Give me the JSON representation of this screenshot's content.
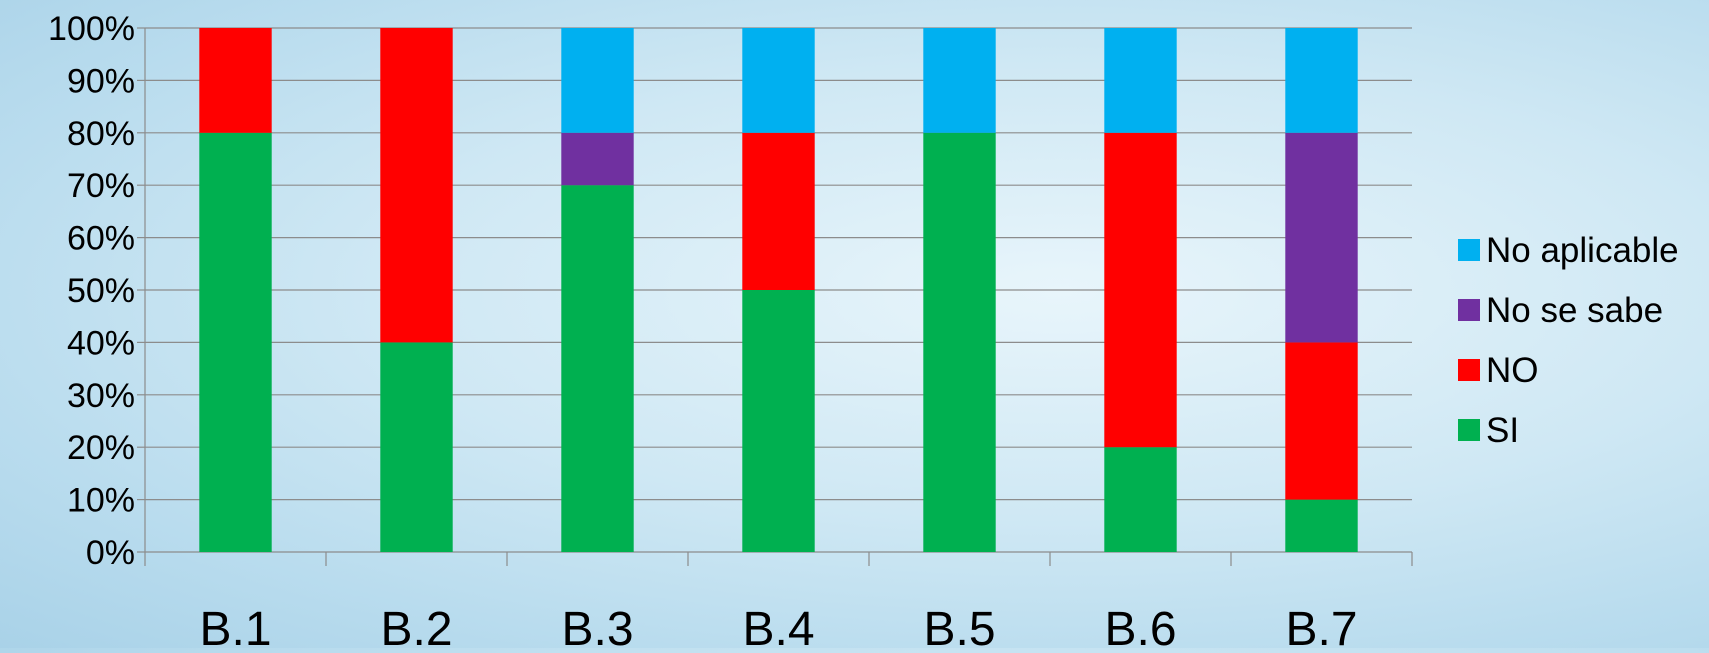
{
  "chart_data": {
    "type": "bar",
    "stacked": true,
    "percent": true,
    "categories": [
      "B.1",
      "B.2",
      "B.3",
      "B.4",
      "B.5",
      "B.6",
      "B.7"
    ],
    "series": [
      {
        "name": "SI",
        "color": "#00b050",
        "values": [
          80,
          40,
          70,
          50,
          80,
          20,
          10
        ]
      },
      {
        "name": "NO",
        "color": "#ff0000",
        "values": [
          20,
          60,
          0,
          30,
          0,
          60,
          30
        ]
      },
      {
        "name": "No se sabe",
        "color": "#7030a0",
        "values": [
          0,
          0,
          10,
          0,
          0,
          0,
          40
        ]
      },
      {
        "name": "No aplicable",
        "color": "#00b0f0",
        "values": [
          0,
          0,
          20,
          20,
          20,
          20,
          20
        ]
      }
    ],
    "y_ticks": [
      "0%",
      "10%",
      "20%",
      "30%",
      "40%",
      "50%",
      "60%",
      "70%",
      "80%",
      "90%",
      "100%"
    ],
    "ylim": [
      0,
      100
    ],
    "grid": true,
    "legend_position": "right",
    "legend_order": [
      "No aplicable",
      "No se sabe",
      "NO",
      "SI"
    ]
  }
}
